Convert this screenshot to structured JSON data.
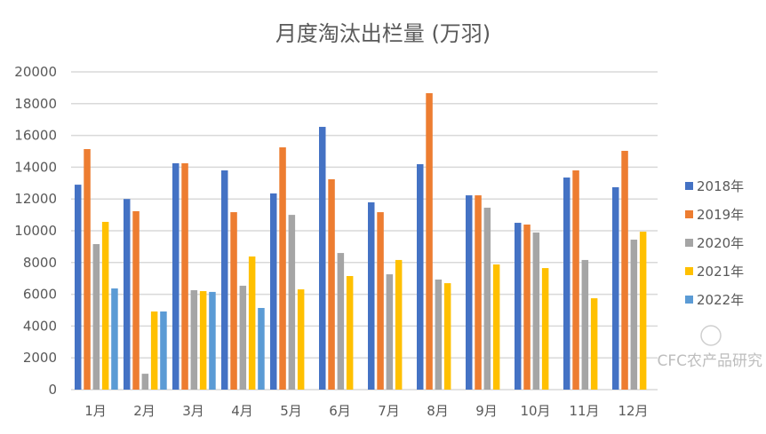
{
  "chart_data": {
    "type": "bar",
    "title": "月度淘汰出栏量 (万羽)",
    "xlabel": "",
    "ylabel": "",
    "ylim": [
      0,
      20000
    ],
    "yticks": [
      "0",
      "2000",
      "4000",
      "6000",
      "8000",
      "10000",
      "12000",
      "14000",
      "16000",
      "18000",
      "20000"
    ],
    "grid": true,
    "legend_position": "right",
    "categories": [
      "1月",
      "2月",
      "3月",
      "4月",
      "5月",
      "6月",
      "7月",
      "8月",
      "9月",
      "10月",
      "11月",
      "12月"
    ],
    "series": [
      {
        "name": "2018年",
        "color": "#4472C4",
        "values": [
          12900,
          12000,
          14250,
          13800,
          12350,
          16540,
          11790,
          14190,
          12230,
          10500,
          13350,
          12740
        ]
      },
      {
        "name": "2019年",
        "color": "#ED7D31",
        "values": [
          15140,
          11230,
          14250,
          11170,
          15250,
          13240,
          11170,
          18660,
          12230,
          10390,
          13800,
          15030
        ]
      },
      {
        "name": "2020年",
        "color": "#A5A5A5",
        "values": [
          9160,
          1000,
          6260,
          6540,
          11000,
          8600,
          7260,
          6930,
          11450,
          9890,
          8160,
          9440
        ]
      },
      {
        "name": "2021年",
        "color": "#FFC000",
        "values": [
          10560,
          4920,
          6200,
          8380,
          6310,
          7150,
          8160,
          6700,
          7880,
          7650,
          5750,
          9940
        ]
      },
      {
        "name": "2022年",
        "color": "#5B9BD5",
        "values": [
          6370,
          4920,
          6150,
          5140,
          null,
          null,
          null,
          null,
          null,
          null,
          null,
          null
        ]
      }
    ]
  },
  "watermark": "CFC农产品研究"
}
